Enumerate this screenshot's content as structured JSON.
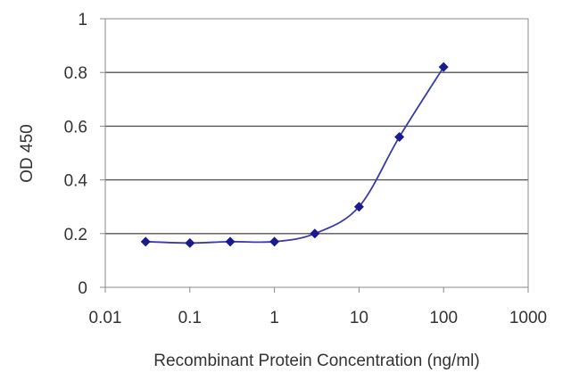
{
  "chart_data": {
    "type": "line",
    "title": "",
    "xlabel": "Recombinant Protein Concentration (ng/ml)",
    "ylabel": "OD 450",
    "xscale": "log",
    "xlim": [
      0.01,
      1000
    ],
    "ylim": [
      0,
      1
    ],
    "xticks": [
      0.01,
      0.1,
      1,
      10,
      100,
      1000
    ],
    "xtick_labels": [
      "0.01",
      "0.1",
      "1",
      "10",
      "100",
      "1000"
    ],
    "yticks": [
      0,
      0.2,
      0.4,
      0.6,
      0.8,
      1
    ],
    "ytick_labels": [
      "0",
      "0.2",
      "0.4",
      "0.6",
      "0.8",
      "1"
    ],
    "grid": "horizontal",
    "legend": "none",
    "series": [
      {
        "x": [
          0.03,
          0.1,
          0.3,
          1,
          3,
          10,
          30,
          100
        ],
        "y": [
          0.17,
          0.165,
          0.17,
          0.17,
          0.2,
          0.3,
          0.56,
          0.82
        ]
      }
    ],
    "colors": {
      "line": "#3a3aa8",
      "marker": "#1a1a8c",
      "grid": "#555555",
      "axis": "#888888"
    }
  }
}
